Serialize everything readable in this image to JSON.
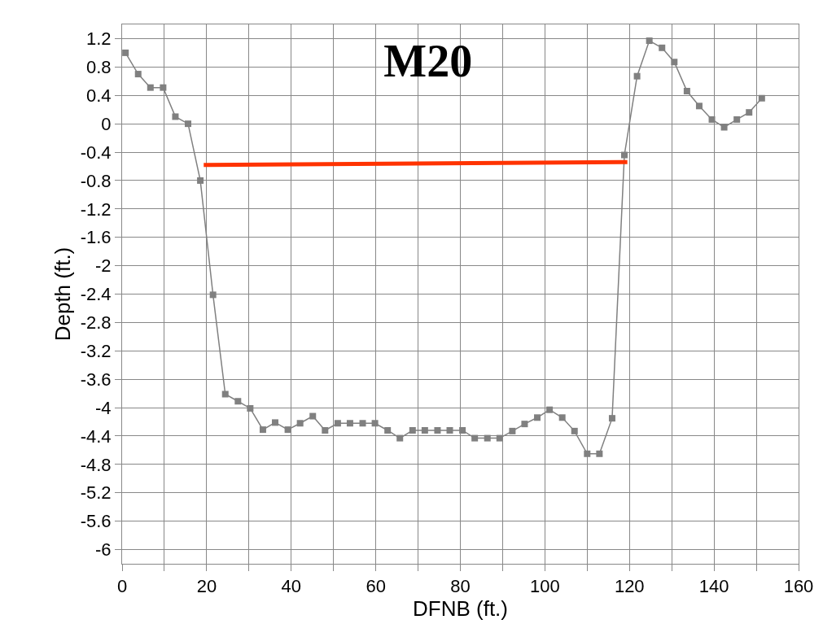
{
  "chart_data": {
    "type": "line",
    "title": "M20",
    "xlabel": "DFNB (ft.)",
    "ylabel": "Depth (ft.)",
    "x": [
      0.8,
      3.8,
      6.7,
      9.7,
      12.6,
      15.6,
      18.5,
      21.5,
      24.4,
      27.4,
      30.3,
      33.3,
      36.2,
      39.2,
      42.1,
      45.1,
      48,
      51,
      53.9,
      56.9,
      59.8,
      62.8,
      65.7,
      68.7,
      71.6,
      74.6,
      77.5,
      80.5,
      83.4,
      86.4,
      89.3,
      92.3,
      95.2,
      98.2,
      101.1,
      104.1,
      107,
      110,
      112.9,
      115.9,
      118.8,
      121.8,
      124.7,
      127.7,
      130.6,
      133.6,
      136.5,
      139.5,
      142.4,
      145.4,
      148.3,
      151.3
    ],
    "series": [
      {
        "color": "#808080",
        "marker": "square",
        "values": [
          1.0,
          0.7,
          0.51,
          0.51,
          0.1,
          0.0,
          -0.8,
          -2.41,
          -3.81,
          -3.91,
          -4.01,
          -4.31,
          -4.21,
          -4.31,
          -4.22,
          -4.12,
          -4.32,
          -4.22,
          -4.22,
          -4.22,
          -4.22,
          -4.32,
          -4.43,
          -4.32,
          -4.32,
          -4.32,
          -4.32,
          -4.32,
          -4.43,
          -4.43,
          -4.43,
          -4.33,
          -4.23,
          -4.14,
          -4.03,
          -4.14,
          -4.33,
          -4.65,
          -4.65,
          -4.15,
          -0.44,
          0.67,
          1.17,
          1.07,
          0.87,
          0.46,
          0.25,
          0.06,
          -0.05,
          0.06,
          0.16,
          0.36
        ]
      },
      {
        "color": "#ff3300",
        "marker": "none",
        "x": [
          19.3,
          119.5
        ],
        "values": [
          -0.58,
          -0.54
        ]
      }
    ],
    "xlim": [
      0,
      160
    ],
    "ylim": [
      -6.2,
      1.4
    ],
    "xticks": [
      0,
      {
        "value": 10,
        "label": null
      },
      20,
      {
        "value": 30,
        "label": null
      },
      40,
      {
        "value": 50,
        "label": null
      },
      60,
      {
        "value": 70,
        "label": null
      },
      80,
      {
        "value": 90,
        "label": null
      },
      100,
      {
        "value": 110,
        "label": null
      },
      120,
      {
        "value": 130,
        "label": null
      },
      140,
      {
        "value": 150,
        "label": null
      },
      160
    ],
    "yticks": [
      1.2,
      0.8,
      0.4,
      0,
      -0.4,
      -0.8,
      -1.2,
      -1.6,
      -2,
      -2.4,
      -2.8,
      -3.2,
      -3.6,
      -4,
      -4.4,
      -4.8,
      -5.2,
      -5.6,
      -6
    ],
    "grid": true
  }
}
